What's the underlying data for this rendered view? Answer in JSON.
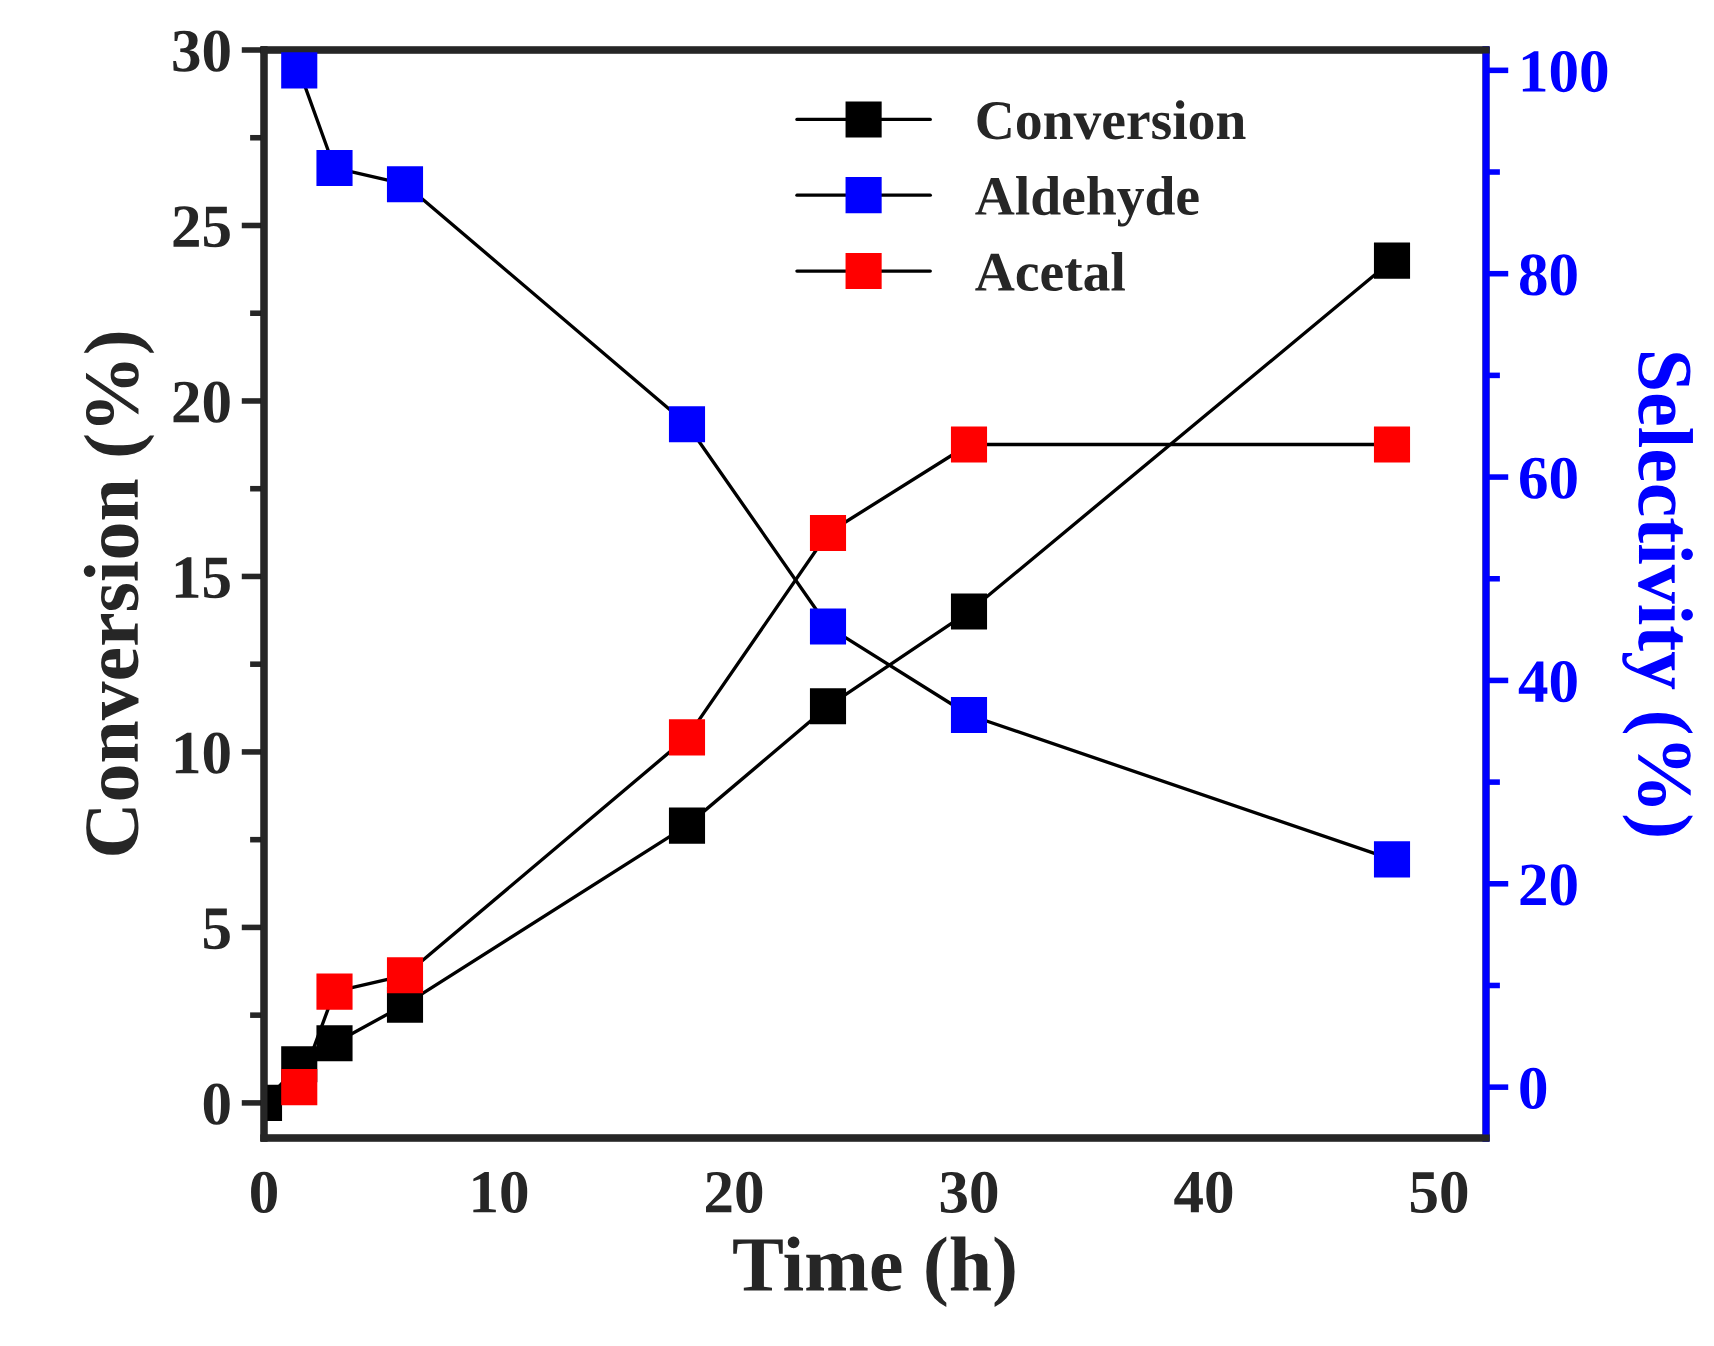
{
  "chart_data": {
    "type": "line",
    "xlabel": "Time (h)",
    "ylabel": "Conversion (%)",
    "y2label": "Selectivity (%)",
    "xlim": [
      0,
      52
    ],
    "xticks": [
      0,
      10,
      20,
      30,
      40,
      50
    ],
    "ylim": [
      -1,
      30
    ],
    "yticks": [
      0,
      5,
      10,
      15,
      20,
      25,
      30
    ],
    "y2lim": [
      -5,
      102
    ],
    "y2ticks": [
      0,
      20,
      40,
      60,
      80,
      100
    ],
    "marker": "square",
    "line_style": "solid",
    "legend": "top",
    "grid": false,
    "series": [
      {
        "name": "Conversion",
        "color": "#000000",
        "x": [
          0,
          1.5,
          3,
          6,
          18,
          24,
          30,
          48
        ],
        "values": [
          0,
          1.1,
          1.7,
          2.8,
          7.9,
          11.3,
          14,
          24
        ]
      },
      {
        "name": "Aldehyde",
        "color": "#0000ff",
        "axis": "y2",
        "x": [
          1.5,
          3,
          6,
          18,
          24,
          30,
          48
        ],
        "values": [
          100,
          90.4,
          88.8,
          65.2,
          45.3,
          36.6,
          22.4
        ]
      },
      {
        "name": "Acetal",
        "color": "#ff0000",
        "axis": "y2",
        "x": [
          1.5,
          3,
          6,
          18,
          24,
          30,
          48
        ],
        "values": [
          0,
          9.4,
          11,
          34.4,
          54.5,
          63.2,
          63.2
        ]
      }
    ]
  }
}
